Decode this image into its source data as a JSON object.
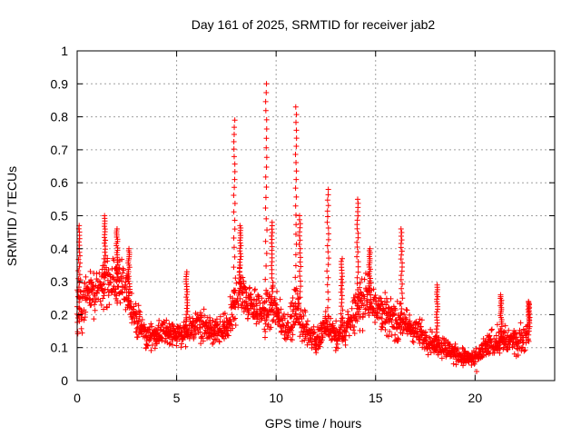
{
  "chart_data": {
    "type": "scatter",
    "title": "Day 161 of 2025, SRMTID for receiver jab2",
    "xlabel": "GPS time / hours",
    "ylabel": "SRMTID / TECUs",
    "xlim": [
      0,
      24
    ],
    "ylim": [
      0,
      1
    ],
    "xticks": [
      0,
      5,
      10,
      15,
      20
    ],
    "yticks": [
      0,
      0.1,
      0.2,
      0.3,
      0.4,
      0.5,
      0.6,
      0.7,
      0.8,
      0.9,
      1
    ],
    "grid": true,
    "marker": "+",
    "color": "#ff0000",
    "series": [
      {
        "name": "SRMTID",
        "envelope": {
          "x": [
            0,
            0.5,
            1,
            1.5,
            2,
            2.5,
            3,
            3.5,
            4,
            4.5,
            5,
            5.5,
            6,
            6.5,
            7,
            7.5,
            7.8,
            8,
            8.2,
            8.5,
            9,
            9.5,
            9.7,
            10,
            10.5,
            10.8,
            11,
            11.3,
            11.7,
            12,
            12.5,
            12.8,
            13,
            13.5,
            14,
            14.5,
            15,
            15.5,
            16,
            16.5,
            17,
            17.5,
            18,
            18.5,
            19,
            19.5,
            20,
            20.5,
            21,
            21.5,
            22,
            22.5,
            22.7
          ],
          "median": [
            0.2,
            0.28,
            0.27,
            0.3,
            0.3,
            0.26,
            0.18,
            0.13,
            0.14,
            0.15,
            0.14,
            0.14,
            0.17,
            0.16,
            0.14,
            0.16,
            0.2,
            0.25,
            0.28,
            0.25,
            0.22,
            0.2,
            0.22,
            0.2,
            0.16,
            0.18,
            0.22,
            0.17,
            0.14,
            0.12,
            0.16,
            0.15,
            0.13,
            0.15,
            0.22,
            0.25,
            0.24,
            0.2,
            0.18,
            0.17,
            0.15,
            0.13,
            0.11,
            0.1,
            0.08,
            0.07,
            0.06,
            0.1,
            0.12,
            0.12,
            0.12,
            0.13,
            0.15
          ],
          "spread": [
            0.12,
            0.1,
            0.1,
            0.11,
            0.1,
            0.09,
            0.07,
            0.05,
            0.05,
            0.05,
            0.05,
            0.06,
            0.07,
            0.06,
            0.06,
            0.07,
            0.1,
            0.1,
            0.1,
            0.08,
            0.08,
            0.1,
            0.1,
            0.09,
            0.06,
            0.08,
            0.1,
            0.08,
            0.06,
            0.06,
            0.07,
            0.07,
            0.06,
            0.07,
            0.1,
            0.1,
            0.1,
            0.08,
            0.08,
            0.07,
            0.06,
            0.06,
            0.05,
            0.05,
            0.04,
            0.04,
            0.04,
            0.05,
            0.06,
            0.06,
            0.06,
            0.06,
            0.06
          ]
        },
        "peaks": [
          {
            "x": 0.1,
            "y": 0.47
          },
          {
            "x": 1.4,
            "y": 0.5
          },
          {
            "x": 2.0,
            "y": 0.46
          },
          {
            "x": 2.6,
            "y": 0.4
          },
          {
            "x": 5.5,
            "y": 0.33
          },
          {
            "x": 7.9,
            "y": 0.79
          },
          {
            "x": 8.2,
            "y": 0.47
          },
          {
            "x": 9.5,
            "y": 0.9
          },
          {
            "x": 9.8,
            "y": 0.48
          },
          {
            "x": 11.0,
            "y": 0.83
          },
          {
            "x": 11.2,
            "y": 0.5
          },
          {
            "x": 12.6,
            "y": 0.58
          },
          {
            "x": 13.3,
            "y": 0.37
          },
          {
            "x": 14.1,
            "y": 0.55
          },
          {
            "x": 14.7,
            "y": 0.4
          },
          {
            "x": 16.3,
            "y": 0.46
          },
          {
            "x": 18.1,
            "y": 0.29
          },
          {
            "x": 21.3,
            "y": 0.26
          },
          {
            "x": 22.7,
            "y": 0.24
          }
        ]
      }
    ]
  }
}
